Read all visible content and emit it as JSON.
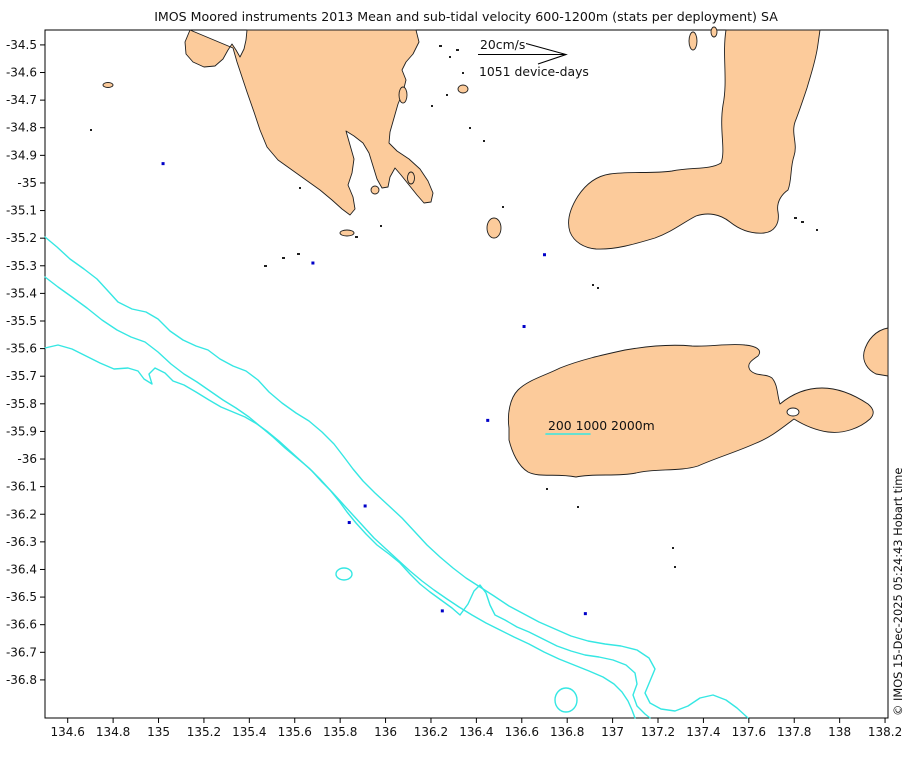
{
  "title": "IMOS Moored instruments 2013 Mean and sub-tidal velocity 600-1200m (stats per deployment) SA",
  "legend": {
    "speed_label": "20cm/s",
    "device_days_label": "1051 device-days"
  },
  "contour_label": "200 1000 2000m",
  "watermark": "© IMOS 15-Dec-2025 05:24:43 Hobart time",
  "colors": {
    "land": "#FCCB9B",
    "coastline": "#1f1f1f",
    "contour": "#35E7E3",
    "station": "#0000C8",
    "frame": "#000000",
    "text": "#111111"
  },
  "axes": {
    "x_ticks": [
      "134.6",
      "134.8",
      "135",
      "135.2",
      "135.4",
      "135.6",
      "135.8",
      "136",
      "136.2",
      "136.4",
      "136.6",
      "136.8",
      "137",
      "137.2",
      "137.4",
      "137.6",
      "137.8",
      "138",
      "138.2"
    ],
    "y_ticks": [
      "-34.5",
      "-34.6",
      "-34.7",
      "-34.8",
      "-34.9",
      "-35",
      "-35.1",
      "-35.2",
      "-35.3",
      "-35.4",
      "-35.5",
      "-35.6",
      "-35.7",
      "-35.8",
      "-35.9",
      "-36",
      "-36.1",
      "-36.2",
      "-36.3",
      "-36.4",
      "-36.5",
      "-36.6",
      "-36.7",
      "-36.8"
    ]
  },
  "chart_data": {
    "type": "map",
    "title": "IMOS Moored instruments 2013 Mean and sub-tidal velocity 600-1200m (stats per deployment) SA",
    "region": "South Australia (Spencer Gulf, Gulf St Vincent, Kangaroo Island)",
    "extent": {
      "lon_min": 134.5,
      "lon_max": 138.213,
      "lat_min": -36.938,
      "lat_max": -34.446
    },
    "x_tick_values": [
      134.6,
      134.8,
      135,
      135.2,
      135.4,
      135.6,
      135.8,
      136,
      136.2,
      136.4,
      136.6,
      136.8,
      137,
      137.2,
      137.4,
      137.6,
      137.8,
      138,
      138.2
    ],
    "y_tick_values": [
      -34.5,
      -34.6,
      -34.7,
      -34.8,
      -34.9,
      -35,
      -35.1,
      -35.2,
      -35.3,
      -35.4,
      -35.5,
      -35.6,
      -35.7,
      -35.8,
      -35.9,
      -36,
      -36.1,
      -36.2,
      -36.3,
      -36.4,
      -36.5,
      -36.6,
      -36.7,
      -36.8
    ],
    "bathymetry_contours_m": [
      200,
      1000,
      2000
    ],
    "velocity_scale_cms": 20,
    "device_days": 1051,
    "stations": [
      {
        "lon": 135.02,
        "lat": -34.93
      },
      {
        "lon": 135.68,
        "lat": -35.29
      },
      {
        "lon": 136.7,
        "lat": -35.26
      },
      {
        "lon": 136.61,
        "lat": -35.52
      },
      {
        "lon": 136.45,
        "lat": -35.86
      },
      {
        "lon": 135.91,
        "lat": -36.17
      },
      {
        "lon": 135.84,
        "lat": -36.23
      },
      {
        "lon": 136.25,
        "lat": -36.55
      },
      {
        "lon": 136.88,
        "lat": -36.56
      }
    ]
  }
}
